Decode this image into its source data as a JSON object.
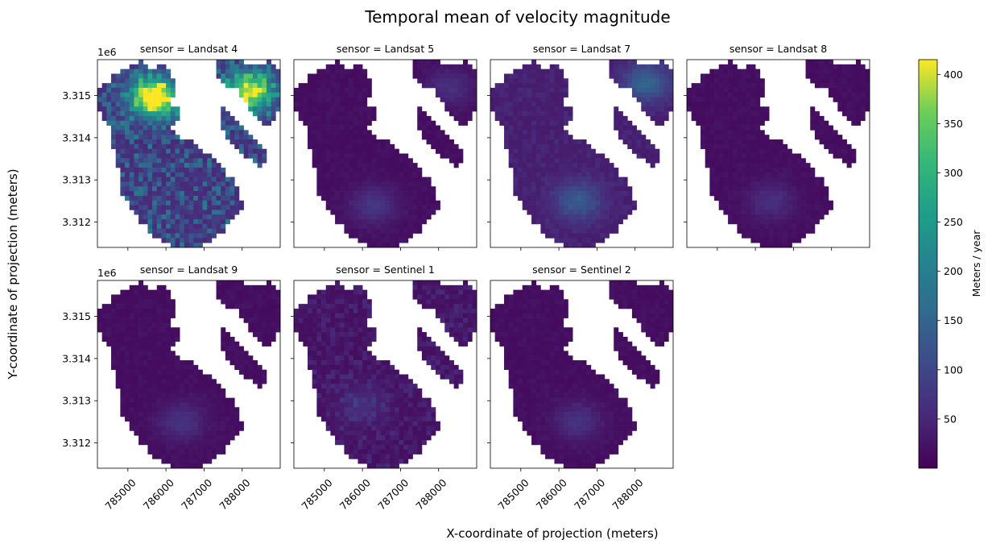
{
  "chart_data": {
    "type": "heatmap",
    "title": "Temporal mean of velocity magnitude",
    "xlabel": "X-coordinate of projection (meters)",
    "ylabel": "Y-coordinate of projection (meters)",
    "facet_label": "sensor",
    "panels": [
      {
        "sensor": "Landsat 4",
        "title": "sensor = Landsat 4",
        "intensity": "high",
        "hotspots": [
          [
            785700,
            3314950,
            410
          ],
          [
            788200,
            3315100,
            330
          ]
        ]
      },
      {
        "sensor": "Landsat 5",
        "title": "sensor = Landsat 5",
        "intensity": "low",
        "hotspots": [
          [
            786300,
            3312400,
            55
          ],
          [
            788300,
            3315200,
            45
          ]
        ]
      },
      {
        "sensor": "Landsat 7",
        "title": "sensor = Landsat 7",
        "intensity": "medium",
        "hotspots": [
          [
            786500,
            3312500,
            95
          ],
          [
            788300,
            3315300,
            110
          ]
        ]
      },
      {
        "sensor": "Landsat 8",
        "title": "sensor = Landsat 8",
        "intensity": "low",
        "hotspots": [
          [
            786400,
            3312500,
            45
          ]
        ]
      },
      {
        "sensor": "Landsat 9",
        "title": "sensor = Landsat 9",
        "intensity": "low",
        "hotspots": [
          [
            786400,
            3312500,
            50
          ]
        ]
      },
      {
        "sensor": "Sentinel 1",
        "title": "sensor = Sentinel 1",
        "intensity": "noisy-low",
        "hotspots": [
          [
            786000,
            3312900,
            40
          ]
        ]
      },
      {
        "sensor": "Sentinel 2",
        "title": "sensor = Sentinel 2",
        "intensity": "low",
        "hotspots": [
          [
            786500,
            3312500,
            50
          ]
        ]
      }
    ],
    "x_ticks": [
      785000,
      786000,
      787000,
      788000
    ],
    "x_tick_labels": [
      "785000",
      "786000",
      "787000",
      "788000"
    ],
    "y_ticks": [
      3312000,
      3313000,
      3314000,
      3315000
    ],
    "y_tick_labels": [
      "3.312",
      "3.313",
      "3.314",
      "3.315"
    ],
    "y_offset_label": "1e6",
    "xlim": [
      784200,
      789000
    ],
    "ylim": [
      3311400,
      3315850
    ],
    "colorbar": {
      "label": "Meters / year",
      "colormap": "viridis",
      "vmin": 0,
      "vmax": 415,
      "ticks": [
        50,
        100,
        150,
        200,
        250,
        300,
        350,
        400
      ],
      "tick_labels": [
        "50",
        "100",
        "150",
        "200",
        "250",
        "300",
        "350",
        "400"
      ]
    }
  }
}
